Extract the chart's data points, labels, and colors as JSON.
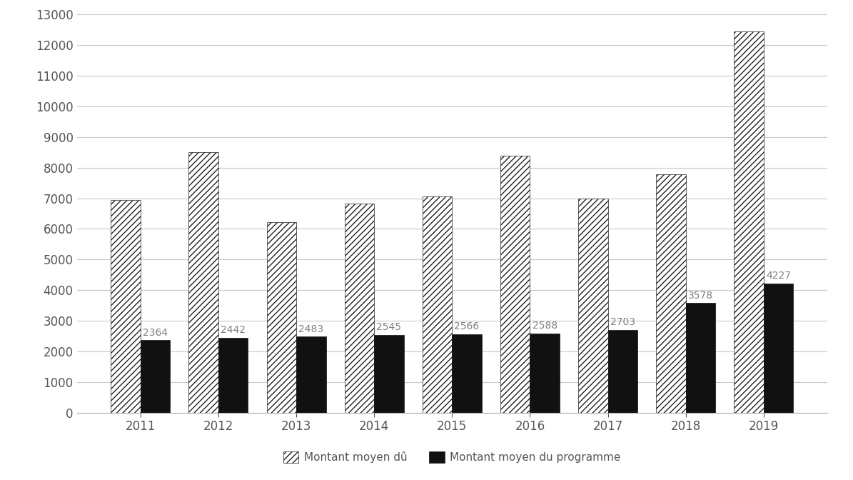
{
  "years": [
    2011,
    2012,
    2013,
    2014,
    2015,
    2016,
    2017,
    2018,
    2019
  ],
  "montant_moyen_du": [
    6950,
    8500,
    6230,
    6830,
    7060,
    8400,
    7000,
    7790,
    12450
  ],
  "montant_moyen_programme": [
    2364,
    2442,
    2483,
    2545,
    2566,
    2588,
    2703,
    3578,
    4227
  ],
  "labels_programme": [
    2364,
    2442,
    2483,
    2545,
    2566,
    2588,
    2703,
    3578,
    4227
  ],
  "legend_label_1": "Montant moyen dû",
  "legend_label_2": "Montant moyen du programme",
  "ylim": [
    0,
    13000
  ],
  "yticks": [
    0,
    1000,
    2000,
    3000,
    4000,
    5000,
    6000,
    7000,
    8000,
    9000,
    10000,
    11000,
    12000,
    13000
  ],
  "bar_width": 0.38,
  "hatch_pattern": "////",
  "bar1_facecolor": "white",
  "bar1_edgecolor": "#222222",
  "bar2_facecolor": "#111111",
  "bar2_edgecolor": "#111111",
  "background_color": "white",
  "grid_color": "#c8c8c8",
  "label_fontsize": 10,
  "label_color": "#808080",
  "tick_fontsize": 12,
  "legend_fontsize": 11
}
